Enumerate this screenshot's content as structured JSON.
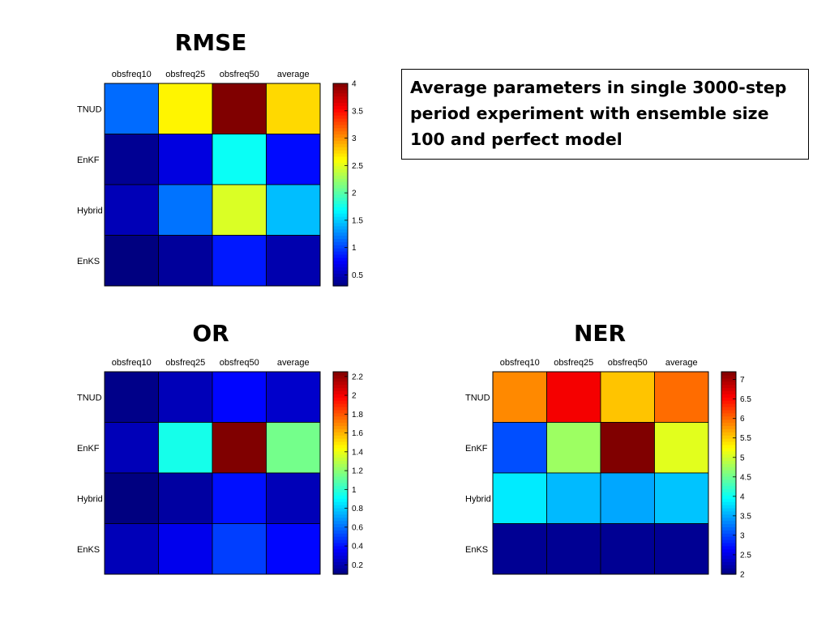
{
  "note": "Average parameters in single 3000-step period experiment with ensemble size 100 and perfect model",
  "colormap": "jet",
  "chart_data": [
    {
      "type": "heatmap",
      "title": "RMSE",
      "columns": [
        "obsfreq10",
        "obsfreq25",
        "obsfreq50",
        "average"
      ],
      "rows": [
        "TNUD",
        "EnKF",
        "Hybrid",
        "EnKS"
      ],
      "values": [
        [
          1.15,
          2.65,
          4.0,
          2.75
        ],
        [
          0.37,
          0.65,
          1.72,
          0.8
        ],
        [
          0.5,
          1.18,
          2.48,
          1.45
        ],
        [
          0.3,
          0.4,
          0.85,
          0.47
        ]
      ],
      "clim": [
        0.3,
        4.0
      ],
      "colorbar_ticks": [
        0.5,
        1,
        1.5,
        2,
        2.5,
        3,
        3.5,
        4
      ],
      "colorbar_ticklabels": [
        "0.5",
        "1",
        "1.5",
        "2",
        "2.5",
        "3",
        "3.5",
        "4"
      ]
    },
    {
      "type": "heatmap",
      "title": "OR",
      "columns": [
        "obsfreq10",
        "obsfreq25",
        "obsfreq50",
        "average"
      ],
      "rows": [
        "TNUD",
        "EnKF",
        "Hybrid",
        "EnKS"
      ],
      "values": [
        [
          0.12,
          0.22,
          0.38,
          0.26
        ],
        [
          0.22,
          0.95,
          2.25,
          1.15
        ],
        [
          0.1,
          0.17,
          0.4,
          0.22
        ],
        [
          0.22,
          0.33,
          0.5,
          0.38
        ]
      ],
      "clim": [
        0.1,
        2.25
      ],
      "colorbar_ticks": [
        0.2,
        0.4,
        0.6,
        0.8,
        1,
        1.2,
        1.4,
        1.6,
        1.8,
        2,
        2.2
      ],
      "colorbar_ticklabels": [
        "0.2",
        "0.4",
        "0.6",
        "0.8",
        "1",
        "1.2",
        "1.4",
        "1.6",
        "1.8",
        "2",
        "2.2"
      ]
    },
    {
      "type": "heatmap",
      "title": "NER",
      "columns": [
        "obsfreq10",
        "obsfreq25",
        "obsfreq50",
        "average"
      ],
      "rows": [
        "TNUD",
        "EnKF",
        "Hybrid",
        "EnKS"
      ],
      "values": [
        [
          5.85,
          6.6,
          5.55,
          6.0
        ],
        [
          3.05,
          4.75,
          7.2,
          5.1
        ],
        [
          3.85,
          3.6,
          3.5,
          3.65
        ],
        [
          2.1,
          2.1,
          2.1,
          2.1
        ]
      ],
      "clim": [
        2.0,
        7.2
      ],
      "colorbar_ticks": [
        2,
        2.5,
        3,
        3.5,
        4,
        4.5,
        5,
        5.5,
        6,
        6.5,
        7
      ],
      "colorbar_ticklabels": [
        "2",
        "2.5",
        "3",
        "3.5",
        "4",
        "4.5",
        "5",
        "5.5",
        "6",
        "6.5",
        "7"
      ]
    }
  ]
}
